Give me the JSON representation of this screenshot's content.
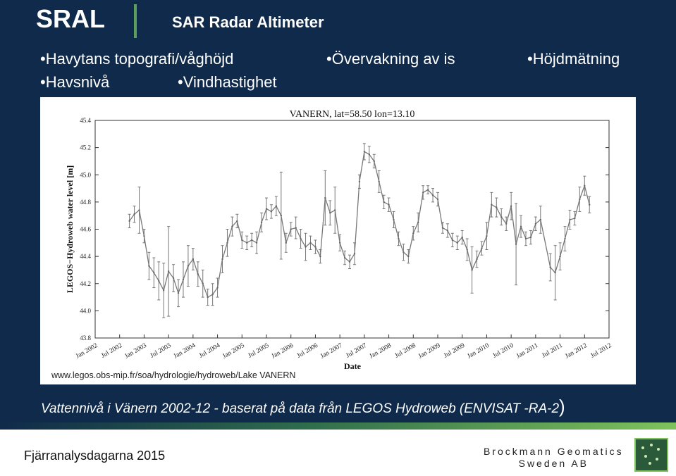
{
  "header": {
    "brand": "SRAL",
    "subtitle": "SAR Radar Altimeter"
  },
  "bullets": [
    "Havytans topografi/våghöjd",
    "Övervakning av is",
    "Höjdmätning",
    "Havsnivå",
    "Vindhastighet"
  ],
  "source": "www.legos.obs-mip.fr/soa/hydrologie/hydroweb/Lake VANERN",
  "caption": "Vattennivå i Vänern 2002-12 - baserat på data från LEGOS Hydroweb (ENVISAT -RA-2",
  "caption_paren": ")",
  "footer": {
    "event": "Fjärranalysdagarna 2015",
    "company_line1": "Brockmann Geomatics",
    "company_line2": "Sweden AB"
  },
  "chart_data": {
    "type": "line",
    "title": "VANERN, lat=58.50 lon=13.10",
    "xlabel": "Date",
    "ylabel": "LEGOS−Hydroweb water level [m]",
    "ylim": [
      43.8,
      45.4
    ],
    "yticks": [
      "43.8",
      "44.0",
      "44.2",
      "44.4",
      "44.6",
      "44.8",
      "45.0",
      "45.2",
      "45.4"
    ],
    "xlim": [
      2002.0,
      2012.5
    ],
    "xticks": [
      "Jan 2002",
      "Jul 2002",
      "Jan 2003",
      "Jul 2003",
      "Jan 2004",
      "Jul 2004",
      "Jan 2005",
      "Jul 2005",
      "Jan 2006",
      "Jul 2006",
      "Jan 2007",
      "Jul 2007",
      "Jan 2008",
      "Jul 2008",
      "Jan 2009",
      "Jul 2009",
      "Jan 2010",
      "Jul 2010",
      "Jan 2011",
      "Jul 2011",
      "Jan 2012",
      "Jul 2012"
    ],
    "series": [
      {
        "x": [
          2002.7,
          2002.8,
          2002.9,
          2003.0,
          2003.1,
          2003.2,
          2003.3,
          2003.4,
          2003.5,
          2003.6,
          2003.7,
          2003.8,
          2003.9,
          2004.0,
          2004.1,
          2004.2,
          2004.3,
          2004.4,
          2004.5,
          2004.6,
          2004.7,
          2004.8,
          2004.9,
          2005.0,
          2005.1,
          2005.2,
          2005.3,
          2005.4,
          2005.5,
          2005.6,
          2005.7,
          2005.8,
          2005.9,
          2006.0,
          2006.1,
          2006.2,
          2006.3,
          2006.4,
          2006.5,
          2006.6,
          2006.7,
          2006.8,
          2006.9,
          2007.0,
          2007.1,
          2007.2,
          2007.3,
          2007.4,
          2007.5,
          2007.6,
          2007.7,
          2007.8,
          2007.9,
          2008.0,
          2008.1,
          2008.2,
          2008.3,
          2008.4,
          2008.5,
          2008.6,
          2008.7,
          2008.8,
          2008.9,
          2009.0,
          2009.1,
          2009.2,
          2009.3,
          2009.4,
          2009.5,
          2009.6,
          2009.7,
          2009.8,
          2009.9,
          2010.0,
          2010.1,
          2010.2,
          2010.3,
          2010.4,
          2010.5,
          2010.6,
          2010.7,
          2010.8,
          2010.9,
          2011.0,
          2011.1,
          2011.3,
          2011.4,
          2011.5,
          2011.6,
          2011.7,
          2011.8,
          2011.9,
          2012.0,
          2012.1
        ],
        "y": [
          44.66,
          44.71,
          44.74,
          44.55,
          44.33,
          44.28,
          44.22,
          44.15,
          44.29,
          44.24,
          44.13,
          44.23,
          44.33,
          44.38,
          44.27,
          44.2,
          44.1,
          44.12,
          44.17,
          44.38,
          44.5,
          44.62,
          44.66,
          44.52,
          44.5,
          44.52,
          44.5,
          44.65,
          44.75,
          44.73,
          44.77,
          44.7,
          44.5,
          44.6,
          44.61,
          44.53,
          44.47,
          44.5,
          44.47,
          44.4,
          44.83,
          44.72,
          44.74,
          44.5,
          44.39,
          44.36,
          44.42,
          44.95,
          45.17,
          45.15,
          45.1,
          44.95,
          44.8,
          44.78,
          44.67,
          44.53,
          44.43,
          44.4,
          44.57,
          44.65,
          44.87,
          44.89,
          44.85,
          44.82,
          44.61,
          44.59,
          44.52,
          44.5,
          44.54,
          44.45,
          44.3,
          44.38,
          44.46,
          44.55,
          44.78,
          44.76,
          44.69,
          44.64,
          44.77,
          44.49,
          44.62,
          44.53,
          44.54,
          44.64,
          44.67,
          44.32,
          44.28,
          44.4,
          44.53,
          44.67,
          44.68,
          44.82,
          44.92,
          44.78
        ],
        "err": [
          0.05,
          0.06,
          0.17,
          0.05,
          0.1,
          0.11,
          0.14,
          0.2,
          0.33,
          0.1,
          0.1,
          0.13,
          0.15,
          0.08,
          0.09,
          0.1,
          0.06,
          0.08,
          0.07,
          0.1,
          0.1,
          0.07,
          0.05,
          0.06,
          0.05,
          0.05,
          0.08,
          0.07,
          0.08,
          0.05,
          0.07,
          0.32,
          0.07,
          0.05,
          0.08,
          0.07,
          0.1,
          0.05,
          0.05,
          0.05,
          0.2,
          0.09,
          0.17,
          0.06,
          0.05,
          0.05,
          0.08,
          0.05,
          0.06,
          0.06,
          0.05,
          0.08,
          0.05,
          0.05,
          0.06,
          0.05,
          0.06,
          0.05,
          0.05,
          0.07,
          0.05,
          0.03,
          0.05,
          0.05,
          0.04,
          0.05,
          0.05,
          0.05,
          0.05,
          0.08,
          0.17,
          0.06,
          0.05,
          0.1,
          0.09,
          0.07,
          0.06,
          0.05,
          0.1,
          0.3,
          0.08,
          0.05,
          0.05,
          0.05,
          0.1,
          0.1,
          0.2,
          0.1,
          0.09,
          0.07,
          0.05,
          0.09,
          0.07,
          0.06
        ]
      }
    ]
  }
}
